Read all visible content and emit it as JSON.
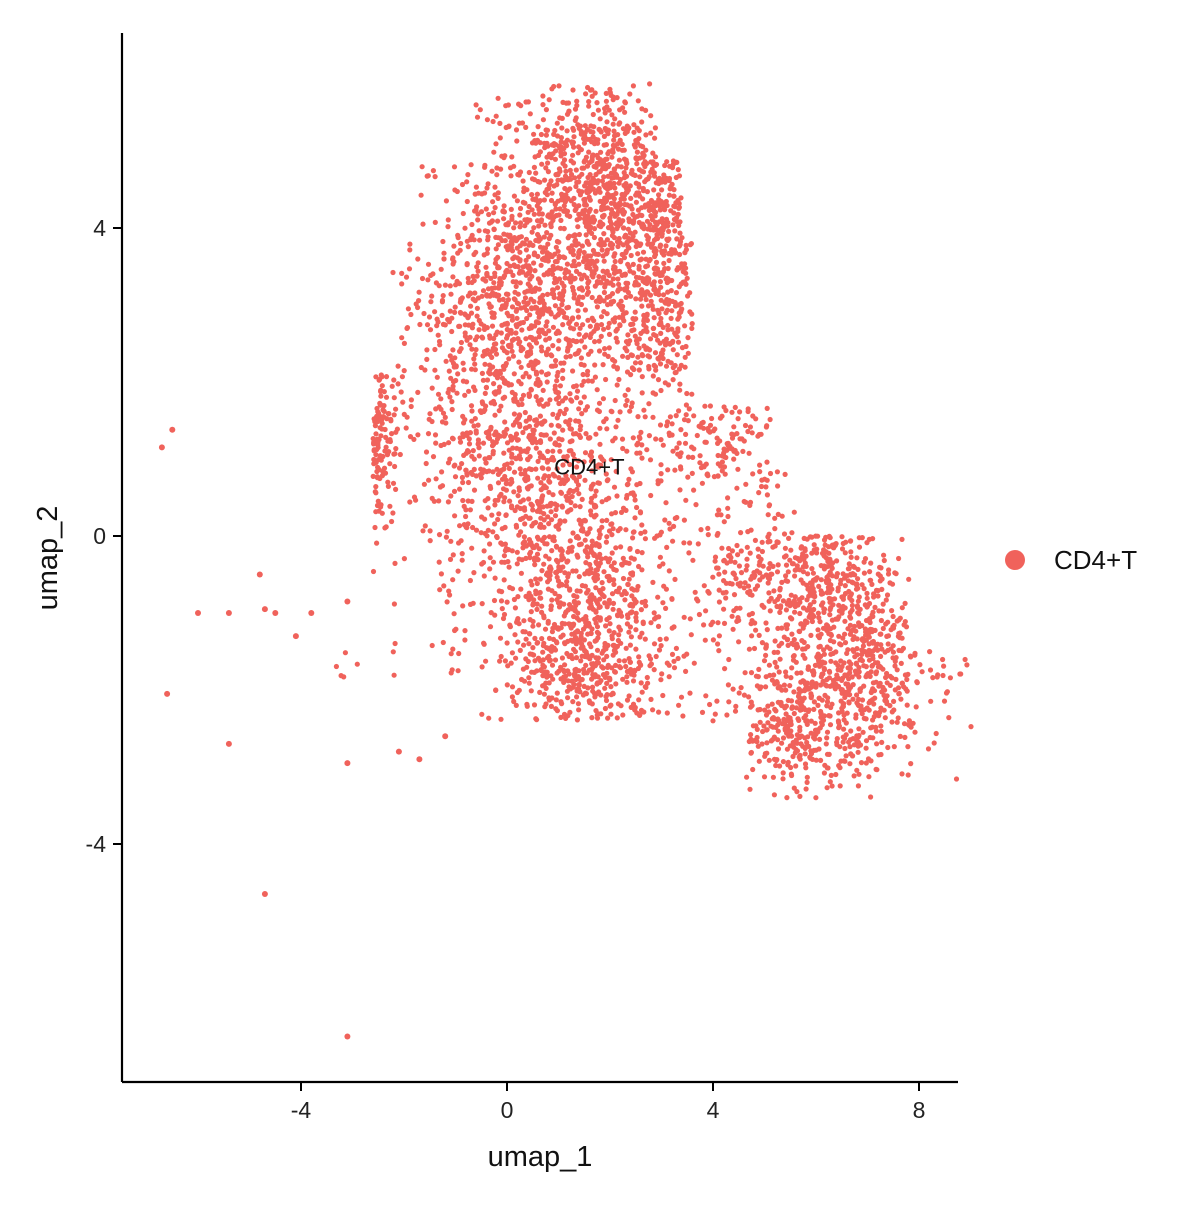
{
  "chart_data": {
    "type": "scatter",
    "title": "",
    "xlabel": "umap_1",
    "ylabel": "umap_2",
    "xlim": [
      -7.5,
      8.7
    ],
    "ylim": [
      -7.0,
      6.6
    ],
    "x_ticks": [
      -4,
      0,
      4,
      8
    ],
    "y_ticks": [
      4,
      0,
      -4
    ],
    "x_tick_labels": [
      "-4",
      "0",
      "4",
      "8"
    ],
    "y_tick_labels": [
      "4",
      "0",
      "-4"
    ],
    "grid": false,
    "legend_position": "right",
    "cluster_label": {
      "text": "CD4+T",
      "x": 1.6,
      "y": 0.9
    },
    "series": [
      {
        "name": "CD4+T",
        "color": "#F0625B",
        "approx_point_count": 5000,
        "outliers": [
          [
            -6.7,
            1.15
          ],
          [
            -6.5,
            1.38
          ],
          [
            -6.0,
            -1.0
          ],
          [
            -5.4,
            -1.0
          ],
          [
            -4.8,
            -0.5
          ],
          [
            -4.7,
            -0.95
          ],
          [
            -4.5,
            -1.0
          ],
          [
            -4.1,
            -1.3
          ],
          [
            -3.8,
            -1.0
          ],
          [
            -3.1,
            -0.85
          ],
          [
            -6.6,
            -2.05
          ],
          [
            -5.4,
            -2.7
          ],
          [
            -3.1,
            -2.95
          ],
          [
            -2.1,
            -2.8
          ],
          [
            -1.7,
            -2.9
          ],
          [
            -1.2,
            -2.6
          ],
          [
            -4.7,
            -4.65
          ],
          [
            -3.1,
            -6.5
          ]
        ]
      }
    ]
  },
  "legend": {
    "items": [
      {
        "label": "CD4+T",
        "color": "#F0625B"
      }
    ]
  }
}
